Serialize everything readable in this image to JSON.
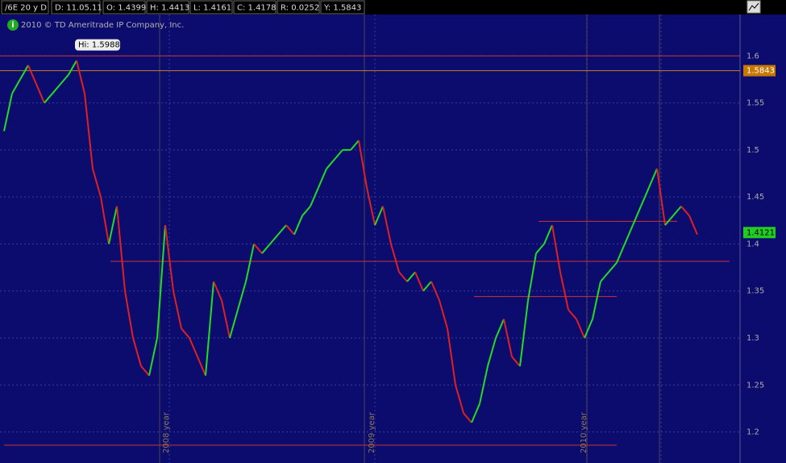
{
  "header": {
    "symbol": "/6E 20 y D",
    "fields": [
      "D: 11.05.11",
      "O: 1.4399",
      "H: 1.4413",
      "L: 1.4161",
      "C: 1.4178",
      "R: 0.0252",
      "Y: 1.5843"
    ]
  },
  "copyright": "2010 © TD Ameritrade IP Company, Inc.",
  "chart_data": {
    "type": "line",
    "values": [
      1.52,
      1.56,
      1.575,
      1.59,
      1.57,
      1.55,
      1.56,
      1.57,
      1.58,
      1.595,
      1.56,
      1.48,
      1.45,
      1.4,
      1.44,
      1.35,
      1.3,
      1.27,
      1.26,
      1.3,
      1.42,
      1.35,
      1.31,
      1.3,
      1.28,
      1.26,
      1.36,
      1.34,
      1.3,
      1.33,
      1.36,
      1.4,
      1.39,
      1.4,
      1.41,
      1.42,
      1.41,
      1.43,
      1.44,
      1.46,
      1.48,
      1.49,
      1.5,
      1.5,
      1.51,
      1.46,
      1.42,
      1.44,
      1.4,
      1.37,
      1.36,
      1.37,
      1.35,
      1.36,
      1.34,
      1.31,
      1.25,
      1.22,
      1.21,
      1.23,
      1.27,
      1.3,
      1.32,
      1.28,
      1.27,
      1.34,
      1.39,
      1.4,
      1.42,
      1.37,
      1.33,
      1.32,
      1.3,
      1.32,
      1.36,
      1.37,
      1.38,
      1.4,
      1.42,
      1.44,
      1.46,
      1.48,
      1.42,
      1.43,
      1.44,
      1.43,
      1.41
    ],
    "up_color": "#22dd22",
    "down_color": "#e02020",
    "ylim": [
      1.167,
      1.644
    ],
    "yticks": [
      1.2,
      1.25,
      1.3,
      1.35,
      1.4,
      1.45,
      1.5,
      1.55,
      1.6
    ],
    "grid": true,
    "hi_label": "Hi: 1.5988",
    "hi_value": 1.5988,
    "levels": [
      {
        "value": 1.6,
        "color": "#d03030"
      },
      {
        "value": 1.5843,
        "color": "#c08020"
      },
      {
        "value": 1.3815,
        "color": "#d03030"
      },
      {
        "value": 1.424,
        "color": "#d03030"
      },
      {
        "value": 1.344,
        "color": "#d03030"
      },
      {
        "value": 1.186,
        "color": "#d03030"
      }
    ],
    "markers": [
      {
        "value": 1.5843,
        "color": "#c87800"
      },
      {
        "value": 1.4121,
        "color": "#22cc22"
      }
    ],
    "annotations": [
      "2008 year",
      "2009 year",
      "2010 year"
    ]
  }
}
